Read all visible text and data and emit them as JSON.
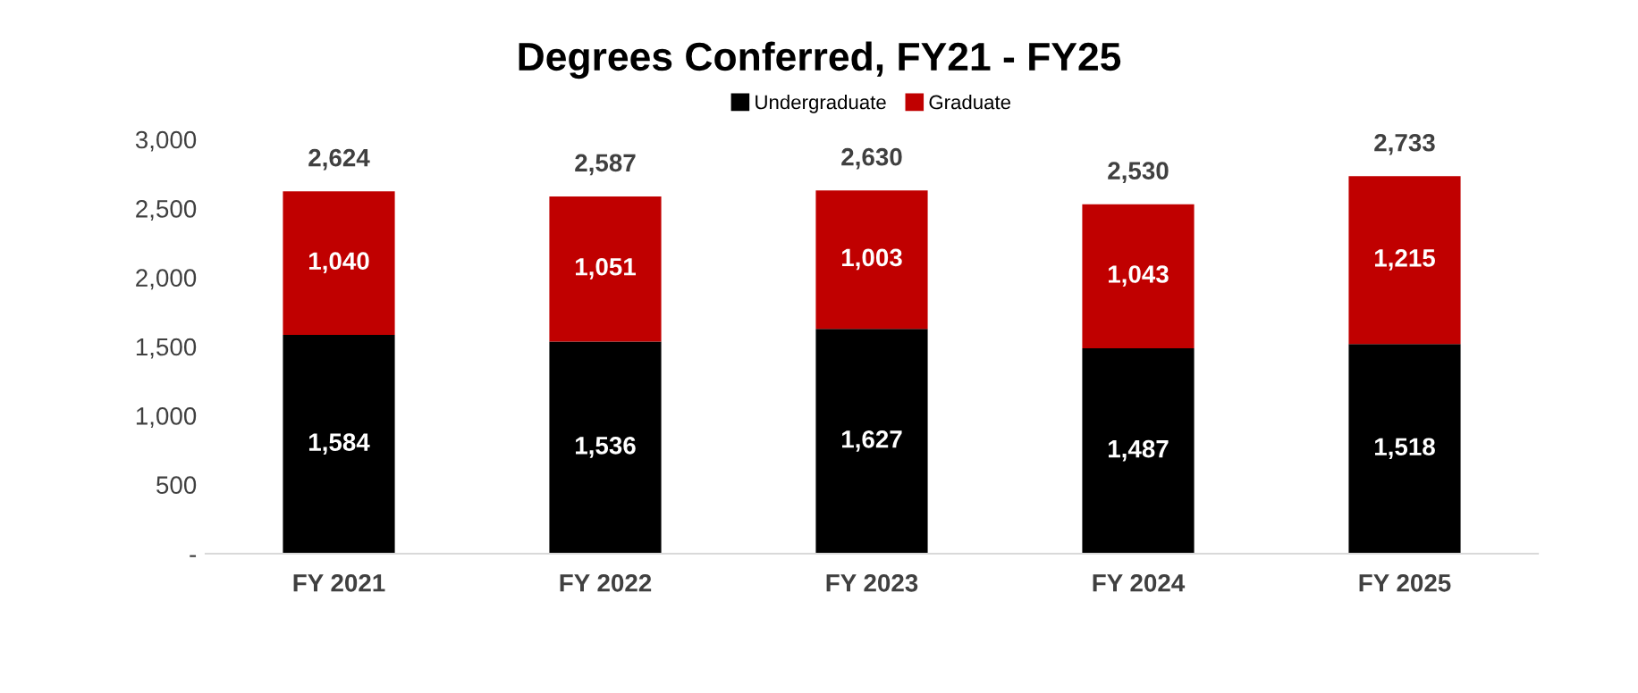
{
  "chart_data": {
    "type": "bar",
    "title": "Degrees Conferred, FY21 - FY25",
    "stacked": true,
    "categories": [
      "FY 2021",
      "FY 2022",
      "FY 2023",
      "FY 2024",
      "FY 2025"
    ],
    "series": [
      {
        "name": "Undergraduate",
        "color": "#000000",
        "values": [
          1584,
          1536,
          1627,
          1487,
          1518
        ],
        "value_labels": [
          "1,584",
          "1,536",
          "1,627",
          "1,487",
          "1,518"
        ]
      },
      {
        "name": "Graduate",
        "color": "#c00000",
        "values": [
          1040,
          1051,
          1003,
          1043,
          1215
        ],
        "value_labels": [
          "1,040",
          "1,051",
          "1,003",
          "1,043",
          "1,215"
        ]
      }
    ],
    "totals": [
      "2,624",
      "2,587",
      "2,630",
      "2,530",
      "2,733"
    ],
    "ylim": [
      0,
      3000
    ],
    "yticks": [
      {
        "value": 0,
        "label": "-"
      },
      {
        "value": 500,
        "label": "500"
      },
      {
        "value": 1000,
        "label": "1,000"
      },
      {
        "value": 1500,
        "label": "1,500"
      },
      {
        "value": 2000,
        "label": "2,000"
      },
      {
        "value": 2500,
        "label": "2,500"
      },
      {
        "value": 3000,
        "label": "3,000"
      }
    ],
    "grid": false,
    "legend": "top"
  }
}
